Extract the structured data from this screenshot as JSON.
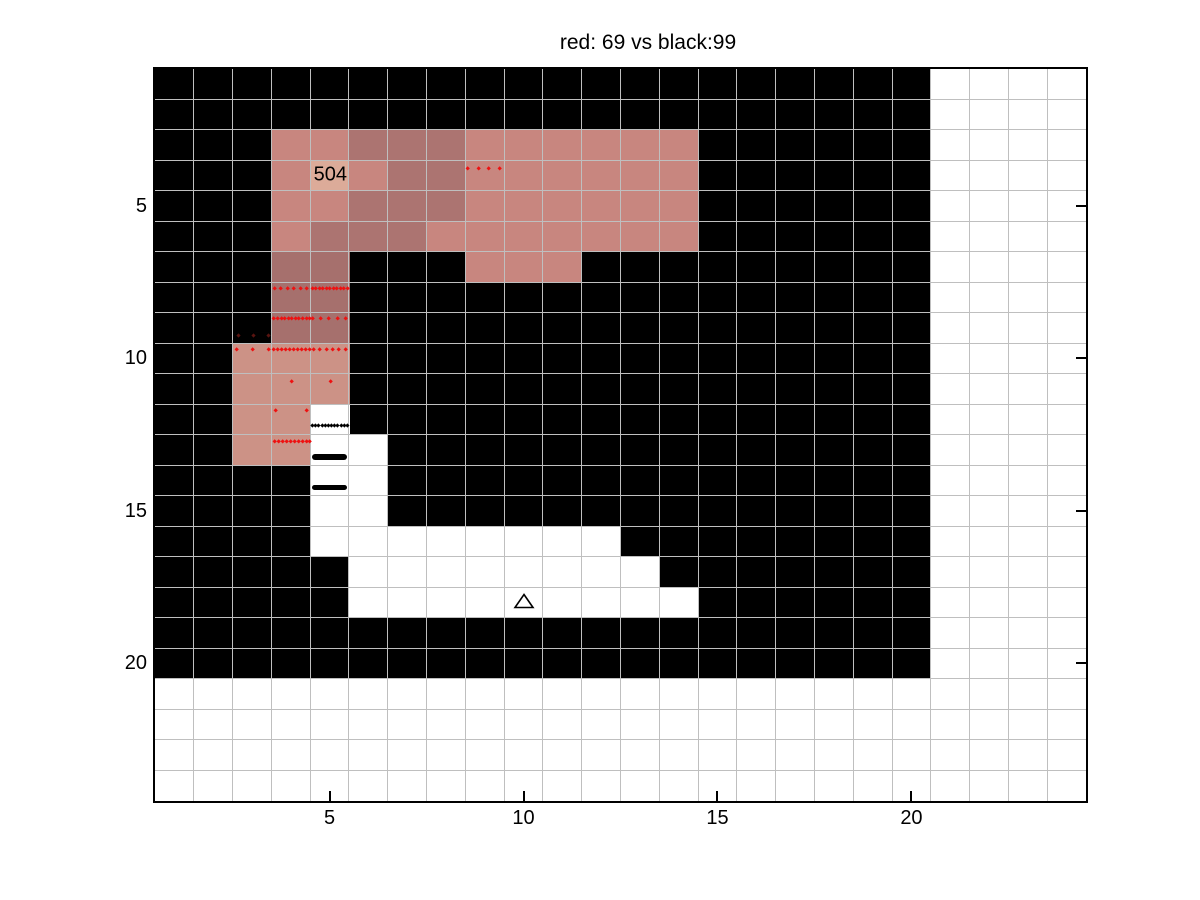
{
  "title": "red: 69 vs black:99",
  "chart_data": {
    "type": "heatmap",
    "grid": {
      "cols": 24,
      "rows": 24
    },
    "x_ticks": [
      5,
      10,
      15,
      20
    ],
    "y_ticks": [
      5,
      10,
      15,
      20
    ],
    "x_range": [
      0.5,
      24.5
    ],
    "y_range": [
      0.5,
      24.5
    ],
    "y_axis_reversed": true,
    "base_regions": {
      "black_block": {
        "col_start": 1,
        "col_end": 20,
        "row_start": 1,
        "row_end": 20
      },
      "background": "white"
    },
    "shade_palette": {
      "L": "#dcab99",
      "M": "#c8867f",
      "D": "#ac7471",
      "E": "#a6706d",
      "R": "#cc9286"
    },
    "pink_cells": [
      {
        "row": 3,
        "start_col": 4,
        "shades": [
          "M",
          "M",
          "D",
          "D",
          "D",
          "M",
          "M",
          "M",
          "M",
          "M",
          "M"
        ]
      },
      {
        "row": 4,
        "start_col": 4,
        "shades": [
          "M",
          "L",
          "M",
          "D",
          "D",
          "M",
          "M",
          "M",
          "M",
          "M",
          "M"
        ]
      },
      {
        "row": 5,
        "start_col": 4,
        "shades": [
          "M",
          "M",
          "D",
          "D",
          "D",
          "M",
          "M",
          "M",
          "M",
          "M",
          "M"
        ]
      },
      {
        "row": 6,
        "start_col": 4,
        "shades": [
          "M",
          "D",
          "D",
          "D",
          "M",
          "M",
          "M",
          "M",
          "M",
          "M",
          "M"
        ]
      },
      {
        "row": 7,
        "start_col": 4,
        "shades": [
          "E",
          "E"
        ]
      },
      {
        "row": 7,
        "start_col": 9,
        "shades": [
          "M",
          "M",
          "M"
        ]
      },
      {
        "row": 8,
        "start_col": 4,
        "shades": [
          "E",
          "E"
        ]
      },
      {
        "row": 9,
        "start_col": 4,
        "shades": [
          "E",
          "E"
        ]
      },
      {
        "row": 10,
        "start_col": 3,
        "shades": [
          "R",
          "R",
          "R"
        ]
      },
      {
        "row": 11,
        "start_col": 3,
        "shades": [
          "R",
          "R",
          "R"
        ]
      },
      {
        "row": 12,
        "start_col": 3,
        "shades": [
          "R",
          "R"
        ]
      },
      {
        "row": 13,
        "start_col": 3,
        "shades": [
          "R",
          "R"
        ]
      }
    ],
    "white_cells": [
      {
        "row": 12,
        "start_col": 5,
        "count": 1
      },
      {
        "row": 13,
        "start_col": 5,
        "count": 2
      },
      {
        "row": 14,
        "start_col": 5,
        "count": 2
      },
      {
        "row": 15,
        "start_col": 5,
        "count": 2
      },
      {
        "row": 16,
        "start_col": 5,
        "count": 8
      },
      {
        "row": 17,
        "start_col": 6,
        "count": 8
      },
      {
        "row": 18,
        "start_col": 6,
        "count": 9
      }
    ],
    "cell_label": {
      "text": "504",
      "x": 5.02,
      "y": 3.99
    },
    "triangle_marker": {
      "x": 10.0,
      "y": 17.95
    },
    "marker_rows": [
      {
        "series": "red",
        "y": 3.77,
        "x_start": 8.57,
        "x_end": 9.38,
        "count": 4
      },
      {
        "series": "red",
        "y": 7.73,
        "x_start": 3.58,
        "x_end": 4.42,
        "count": 6
      },
      {
        "series": "red",
        "y": 7.73,
        "x_start": 4.56,
        "x_end": 5.46,
        "count": 11
      },
      {
        "series": "red",
        "y": 8.7,
        "x_start": 3.57,
        "x_end": 4.49,
        "count": 11
      },
      {
        "series": "red",
        "y": 8.7,
        "x_start": 4.56,
        "x_end": 5.41,
        "count": 5
      },
      {
        "series": "red-dark",
        "y": 9.26,
        "x_start": 2.64,
        "x_end": 3.43,
        "count": 3
      },
      {
        "series": "red",
        "y": 9.71,
        "x_start": 2.61,
        "x_end": 3.44,
        "count": 3
      },
      {
        "series": "red",
        "y": 9.71,
        "x_start": 3.57,
        "x_end": 4.49,
        "count": 10
      },
      {
        "series": "red",
        "y": 9.71,
        "x_start": 4.59,
        "x_end": 5.41,
        "count": 6
      },
      {
        "series": "red",
        "y": 10.76,
        "x_start": 4.02,
        "x_end": 5.04,
        "count": 2
      },
      {
        "series": "red",
        "y": 11.72,
        "x_start": 3.61,
        "x_end": 4.41,
        "count": 2
      },
      {
        "series": "black-dotted",
        "y": 12.21,
        "x_start": 4.56,
        "x_end": 5.46,
        "count": 12
      },
      {
        "series": "red",
        "y": 12.74,
        "x_start": 3.58,
        "x_end": 4.5,
        "count": 10
      },
      {
        "series": "black-solid",
        "y": 13.23,
        "x_start": 4.56,
        "x_end": 5.46
      },
      {
        "series": "black-solid",
        "y": 14.23,
        "x_start": 4.56,
        "x_end": 5.44
      }
    ],
    "colors": {
      "red_marker": "#ee1111",
      "dark_red_marker": "#5a1410",
      "black": "#000000",
      "white": "#ffffff",
      "grid_line": "#bfbfbf"
    }
  }
}
